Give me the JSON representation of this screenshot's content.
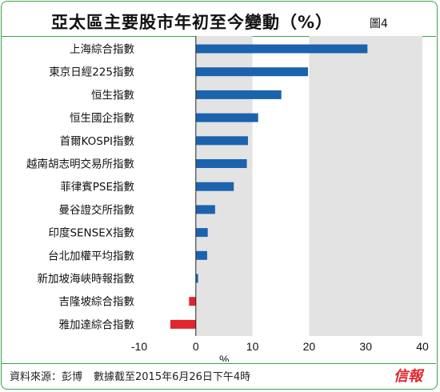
{
  "header": {
    "title": "亞太區主要股市年初至今變動（%）",
    "figure_number": "圖4"
  },
  "footer": {
    "source": "資料來源：彭博",
    "data_as_of": "數據截至2015年6月26日下午4時",
    "brand_logo": "信報"
  },
  "colors": {
    "positive_bar": "#1c63ad",
    "negative_bar": "#e0252d",
    "band_shade": "#e3e3e3",
    "frame_green": "#3aa24a"
  },
  "chart_data": {
    "type": "bar",
    "orientation": "horizontal",
    "categories": [
      "上海綜合指數",
      "東京日經225指數",
      "恒生指數",
      "恒生國企指數",
      "首爾KOSPI指數",
      "越南胡志明交易所指數",
      "菲律賓PSE指數",
      "曼谷證交所指數",
      "印度SENSEX指數",
      "台北加權平均指數",
      "新加坡海峽時報指數",
      "吉隆坡綜合指數",
      "雅加達綜合指數"
    ],
    "values": [
      30.3,
      19.8,
      15.1,
      11.0,
      9.2,
      9.0,
      6.7,
      3.4,
      2.1,
      2.0,
      0.4,
      -1.2,
      -4.5
    ],
    "xlabel": "%",
    "xlim": [
      -10,
      40
    ],
    "xticks": [
      -10,
      0,
      10,
      20,
      30,
      40
    ],
    "shaded_bands": [
      [
        0,
        10
      ],
      [
        20,
        30
      ]
    ],
    "grid": false
  }
}
